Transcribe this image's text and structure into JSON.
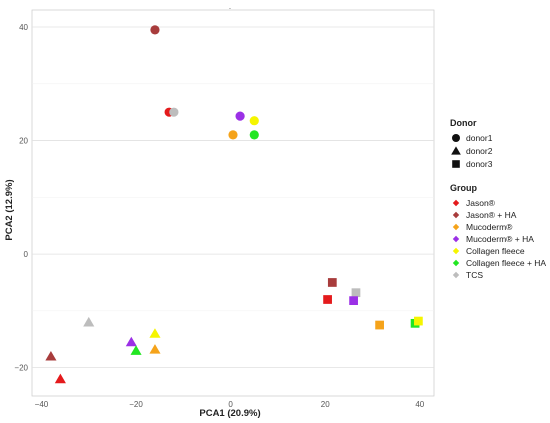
{
  "chart_data": {
    "type": "scatter",
    "title": ".",
    "xlabel": "PCA1 (20.9%)",
    "ylabel": "PCA2 (12.9%)",
    "xlim": [
      -42,
      43
    ],
    "ylim": [
      -25,
      43
    ],
    "xticks": [
      -40,
      -20,
      0,
      20,
      40
    ],
    "yticks": [
      -20,
      0,
      20,
      40
    ],
    "xtick_labels": [
      "−40",
      "−20",
      "0",
      "20",
      "40"
    ],
    "ytick_labels": [
      "−20",
      "0",
      "20",
      "40"
    ],
    "grid": true,
    "legend_placement": "right",
    "colors": {
      "Jason®": "#e41a1c",
      "Jason® + HA": "#a83c3c",
      "Mucoderm®": "#f5a31a",
      "Mucoderm® + HA": "#9b30e6",
      "Collagen fleece": "#f5f500",
      "Collagen fleece + HA": "#22e622",
      "TCS": "#bdbdbd"
    },
    "donor_legend": {
      "title": "Donor",
      "items": [
        {
          "label": "donor1",
          "shape": "circle"
        },
        {
          "label": "donor2",
          "shape": "triangle"
        },
        {
          "label": "donor3",
          "shape": "square"
        }
      ]
    },
    "group_legend": {
      "title": "Group",
      "items": [
        "Jason®",
        "Jason® + HA",
        "Mucoderm®",
        "Mucoderm® + HA",
        "Collagen fleece",
        "Collagen fleece + HA",
        "TCS"
      ]
    },
    "points": [
      {
        "x": -16,
        "y": 39.5,
        "donor": "donor1",
        "group": "Jason® + HA"
      },
      {
        "x": -13,
        "y": 25,
        "donor": "donor1",
        "group": "Jason®"
      },
      {
        "x": -12,
        "y": 25,
        "donor": "donor1",
        "group": "TCS"
      },
      {
        "x": 2,
        "y": 24.3,
        "donor": "donor1",
        "group": "Mucoderm® + HA"
      },
      {
        "x": 5,
        "y": 23.5,
        "donor": "donor1",
        "group": "Collagen fleece"
      },
      {
        "x": 0.5,
        "y": 21,
        "donor": "donor1",
        "group": "Mucoderm®"
      },
      {
        "x": 5,
        "y": 21,
        "donor": "donor1",
        "group": "Collagen fleece + HA"
      },
      {
        "x": -30,
        "y": -12,
        "donor": "donor2",
        "group": "TCS"
      },
      {
        "x": -38,
        "y": -18,
        "donor": "donor2",
        "group": "Jason® + HA"
      },
      {
        "x": -36,
        "y": -22,
        "donor": "donor2",
        "group": "Jason®"
      },
      {
        "x": -21,
        "y": -15.5,
        "donor": "donor2",
        "group": "Mucoderm® + HA"
      },
      {
        "x": -20,
        "y": -17,
        "donor": "donor2",
        "group": "Collagen fleece + HA"
      },
      {
        "x": -16,
        "y": -14,
        "donor": "donor2",
        "group": "Collagen fleece"
      },
      {
        "x": -16,
        "y": -16.8,
        "donor": "donor2",
        "group": "Mucoderm®"
      },
      {
        "x": 21.5,
        "y": -5,
        "donor": "donor3",
        "group": "Jason® + HA"
      },
      {
        "x": 20.5,
        "y": -8,
        "donor": "donor3",
        "group": "Jason®"
      },
      {
        "x": 26.5,
        "y": -6.8,
        "donor": "donor3",
        "group": "TCS"
      },
      {
        "x": 26,
        "y": -8.2,
        "donor": "donor3",
        "group": "Mucoderm® + HA"
      },
      {
        "x": 31.5,
        "y": -12.5,
        "donor": "donor3",
        "group": "Mucoderm®"
      },
      {
        "x": 39,
        "y": -12.2,
        "donor": "donor3",
        "group": "Collagen fleece + HA"
      },
      {
        "x": 39.7,
        "y": -11.8,
        "donor": "donor3",
        "group": "Collagen fleece"
      }
    ]
  }
}
